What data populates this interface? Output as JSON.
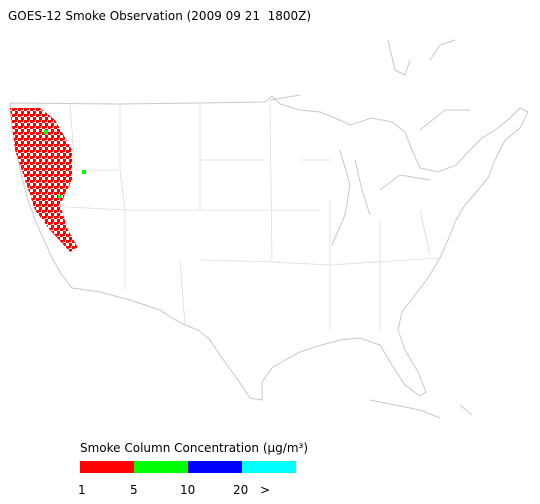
{
  "title": "GOES-12 Smoke Observation (2009 09 21  1800Z)",
  "legend": {
    "title": "Smoke Column Concentration (μg/m³)",
    "ticks": [
      "1",
      "5",
      "10",
      "20",
      ">"
    ],
    "colors": [
      "#ff0000",
      "#00ff00",
      "#0000ff",
      "#00ffff"
    ]
  }
}
